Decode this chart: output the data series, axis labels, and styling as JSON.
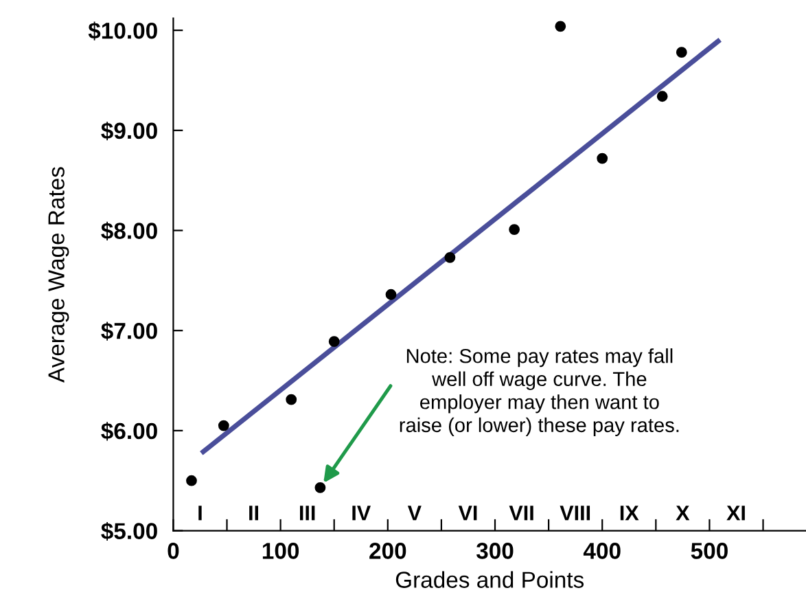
{
  "chart_data": {
    "type": "scatter",
    "xlabel": "Grades and Points",
    "ylabel": "Average Wage Rates",
    "series": [
      {
        "color": "#000000",
        "marker": "circle",
        "x": [
          17,
          47,
          110,
          150,
          203,
          258,
          318,
          361,
          400,
          456,
          474,
          137
        ],
        "values": [
          5.5,
          6.05,
          6.31,
          6.89,
          7.36,
          7.73,
          8.01,
          10.04,
          8.72,
          9.34,
          9.78,
          5.43
        ]
      },
      {
        "type": "line",
        "color": "#4a4e9a",
        "x": [
          28,
          508
        ],
        "values": [
          5.79,
          9.89
        ]
      }
    ],
    "annotations": [
      {
        "text": "Note: Some pay rates may fall\nwell off wage curve. The\nemployer may then want to\nraise (or lower) these pay rates.",
        "x": 137,
        "y": 5.43
      },
      "I",
      "II",
      "III",
      "IV",
      "V",
      "VI",
      "VII",
      "VIII",
      "IX",
      "X",
      "XI"
    ],
    "xlim": [
      0,
      590
    ],
    "ylim": [
      5,
      10.12
    ],
    "xticks": [
      0,
      {
        "value": 50,
        "label": null
      },
      100,
      {
        "value": 150,
        "label": null
      },
      200,
      {
        "value": 250,
        "label": null
      },
      300,
      {
        "value": 350,
        "label": null
      },
      400,
      {
        "value": 450,
        "label": null
      },
      500,
      {
        "value": 550,
        "label": null
      }
    ],
    "yticks": [
      {
        "value": 5,
        "label": "$5.00"
      },
      {
        "value": 6,
        "label": "$6.00"
      },
      {
        "value": 7,
        "label": "$7.00"
      },
      {
        "value": 8,
        "label": "$8.00"
      },
      {
        "value": 9,
        "label": "$9.00"
      },
      {
        "value": 10,
        "label": "$10.00"
      }
    ],
    "grid": false,
    "legend": false,
    "line_style": "solid"
  }
}
